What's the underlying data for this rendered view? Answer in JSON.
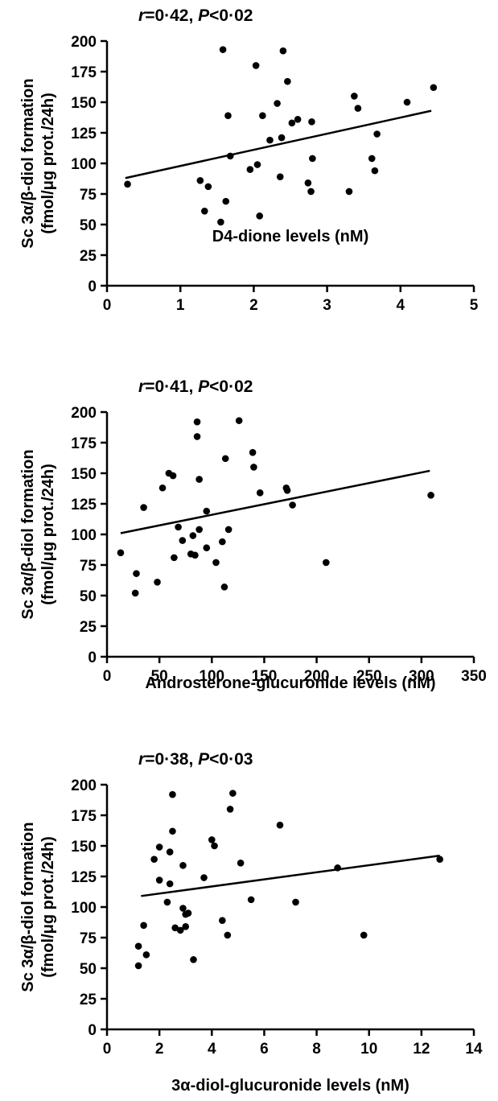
{
  "chart_data": [
    {
      "type": "scatter",
      "annotation": {
        "r_label": "r",
        "r_value": "=0·42, ",
        "p_label": "P",
        "p_value": "<0·02"
      },
      "xlabel": "D4-dione levels (nM)",
      "ylabel_line1": "Sc 3α/β-diol formation",
      "ylabel_line2": "(fmol/μg prot./24h)",
      "xlim": [
        0,
        5
      ],
      "ylim": [
        0,
        200
      ],
      "x_ticks": [
        "0",
        "1",
        "2",
        "3",
        "4",
        "5"
      ],
      "y_ticks": [
        "0",
        "25",
        "50",
        "75",
        "100",
        "125",
        "150",
        "175",
        "200"
      ],
      "regression": {
        "x1": 0.25,
        "y1": 88,
        "x2": 4.42,
        "y2": 143
      },
      "points": [
        {
          "x": 0.28,
          "y": 83
        },
        {
          "x": 1.27,
          "y": 86
        },
        {
          "x": 1.33,
          "y": 61
        },
        {
          "x": 1.38,
          "y": 81
        },
        {
          "x": 1.55,
          "y": 52
        },
        {
          "x": 1.58,
          "y": 193
        },
        {
          "x": 1.62,
          "y": 69
        },
        {
          "x": 1.65,
          "y": 139
        },
        {
          "x": 1.68,
          "y": 106
        },
        {
          "x": 1.95,
          "y": 95
        },
        {
          "x": 2.03,
          "y": 180
        },
        {
          "x": 2.05,
          "y": 99
        },
        {
          "x": 2.08,
          "y": 57
        },
        {
          "x": 2.12,
          "y": 139
        },
        {
          "x": 2.22,
          "y": 119
        },
        {
          "x": 2.32,
          "y": 149
        },
        {
          "x": 2.36,
          "y": 89
        },
        {
          "x": 2.38,
          "y": 121
        },
        {
          "x": 2.4,
          "y": 192
        },
        {
          "x": 2.46,
          "y": 167
        },
        {
          "x": 2.52,
          "y": 133
        },
        {
          "x": 2.6,
          "y": 136
        },
        {
          "x": 2.74,
          "y": 84
        },
        {
          "x": 2.78,
          "y": 77
        },
        {
          "x": 2.79,
          "y": 134
        },
        {
          "x": 2.8,
          "y": 104
        },
        {
          "x": 3.3,
          "y": 77
        },
        {
          "x": 3.37,
          "y": 155
        },
        {
          "x": 3.42,
          "y": 145
        },
        {
          "x": 3.61,
          "y": 104
        },
        {
          "x": 3.65,
          "y": 94
        },
        {
          "x": 3.68,
          "y": 124
        },
        {
          "x": 4.09,
          "y": 150
        },
        {
          "x": 4.45,
          "y": 162
        }
      ]
    },
    {
      "type": "scatter",
      "annotation": {
        "r_label": "r",
        "r_value": "=0·41, ",
        "p_label": "P",
        "p_value": "<0·02"
      },
      "xlabel": "Androsterone-glucuronide levels  (nM)",
      "ylabel_line1": "Sc 3α/β-diol formation",
      "ylabel_line2": "(fmol/μg prot./24h)",
      "xlim": [
        0,
        350
      ],
      "ylim": [
        0,
        200
      ],
      "x_ticks": [
        "0",
        "50",
        "100",
        "150",
        "200",
        "250",
        "300",
        "350"
      ],
      "y_ticks": [
        "0",
        "25",
        "50",
        "75",
        "100",
        "125",
        "150",
        "175",
        "200"
      ],
      "regression": {
        "x1": 13,
        "y1": 101,
        "x2": 308,
        "y2": 152
      },
      "points": [
        {
          "x": 13,
          "y": 85
        },
        {
          "x": 27,
          "y": 52
        },
        {
          "x": 28,
          "y": 68
        },
        {
          "x": 35,
          "y": 122
        },
        {
          "x": 48,
          "y": 61
        },
        {
          "x": 53,
          "y": 138
        },
        {
          "x": 59,
          "y": 150
        },
        {
          "x": 63,
          "y": 148
        },
        {
          "x": 64,
          "y": 81
        },
        {
          "x": 68,
          "y": 106
        },
        {
          "x": 72,
          "y": 95
        },
        {
          "x": 80,
          "y": 84
        },
        {
          "x": 82,
          "y": 99
        },
        {
          "x": 84,
          "y": 83
        },
        {
          "x": 86,
          "y": 192
        },
        {
          "x": 86,
          "y": 180
        },
        {
          "x": 88,
          "y": 145
        },
        {
          "x": 88,
          "y": 104
        },
        {
          "x": 95,
          "y": 119
        },
        {
          "x": 95,
          "y": 89
        },
        {
          "x": 104,
          "y": 77
        },
        {
          "x": 110,
          "y": 94
        },
        {
          "x": 112,
          "y": 57
        },
        {
          "x": 113,
          "y": 162
        },
        {
          "x": 116,
          "y": 104
        },
        {
          "x": 126,
          "y": 193
        },
        {
          "x": 139,
          "y": 167
        },
        {
          "x": 140,
          "y": 155
        },
        {
          "x": 146,
          "y": 134
        },
        {
          "x": 171,
          "y": 138
        },
        {
          "x": 172,
          "y": 136
        },
        {
          "x": 177,
          "y": 124
        },
        {
          "x": 209,
          "y": 77
        },
        {
          "x": 309,
          "y": 132
        }
      ]
    },
    {
      "type": "scatter",
      "annotation": {
        "r_label": "r",
        "r_value": "=0·38, ",
        "p_label": "P",
        "p_value": "<0·03"
      },
      "xlabel": "3α-diol-glucuronide levels (nM)",
      "ylabel_line1": "Sc 3α/β-diol formation",
      "ylabel_line2": "(fmol/μg prot./24h)",
      "xlim": [
        0,
        14
      ],
      "ylim": [
        0,
        200
      ],
      "x_ticks": [
        "0",
        "2",
        "4",
        "6",
        "8",
        "10",
        "12",
        "14"
      ],
      "y_ticks": [
        "0",
        "25",
        "50",
        "75",
        "100",
        "125",
        "150",
        "175",
        "200"
      ],
      "regression": {
        "x1": 1.3,
        "y1": 109,
        "x2": 12.7,
        "y2": 142
      },
      "points": [
        {
          "x": 1.2,
          "y": 68
        },
        {
          "x": 1.2,
          "y": 52
        },
        {
          "x": 1.4,
          "y": 85
        },
        {
          "x": 1.5,
          "y": 61
        },
        {
          "x": 1.8,
          "y": 139
        },
        {
          "x": 2.0,
          "y": 149
        },
        {
          "x": 2.0,
          "y": 122
        },
        {
          "x": 2.3,
          "y": 104
        },
        {
          "x": 2.4,
          "y": 119
        },
        {
          "x": 2.4,
          "y": 145
        },
        {
          "x": 2.5,
          "y": 192
        },
        {
          "x": 2.5,
          "y": 162
        },
        {
          "x": 2.6,
          "y": 83
        },
        {
          "x": 2.8,
          "y": 81
        },
        {
          "x": 2.9,
          "y": 134
        },
        {
          "x": 2.9,
          "y": 99
        },
        {
          "x": 3.0,
          "y": 94
        },
        {
          "x": 3.0,
          "y": 84
        },
        {
          "x": 3.1,
          "y": 95
        },
        {
          "x": 3.3,
          "y": 57
        },
        {
          "x": 3.7,
          "y": 124
        },
        {
          "x": 4.0,
          "y": 155
        },
        {
          "x": 4.1,
          "y": 150
        },
        {
          "x": 4.4,
          "y": 89
        },
        {
          "x": 4.6,
          "y": 77
        },
        {
          "x": 4.7,
          "y": 180
        },
        {
          "x": 4.8,
          "y": 193
        },
        {
          "x": 5.1,
          "y": 136
        },
        {
          "x": 5.5,
          "y": 106
        },
        {
          "x": 6.6,
          "y": 167
        },
        {
          "x": 7.2,
          "y": 104
        },
        {
          "x": 8.8,
          "y": 132
        },
        {
          "x": 9.8,
          "y": 77
        },
        {
          "x": 12.7,
          "y": 139
        }
      ]
    }
  ]
}
